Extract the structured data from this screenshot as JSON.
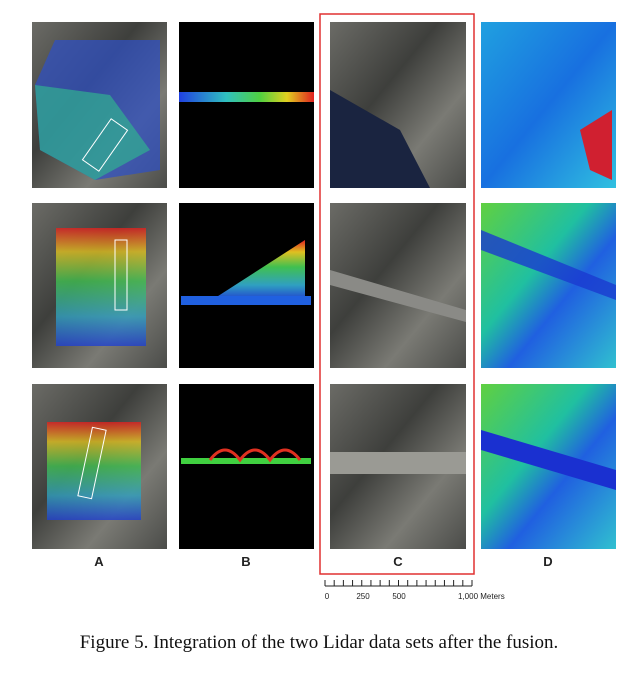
{
  "figure": {
    "column_labels": [
      "A",
      "B",
      "C",
      "D"
    ],
    "scale_bar": {
      "labels": [
        "0",
        "250",
        "500",
        "1,000 Meters"
      ]
    },
    "caption": "Figure 5. Integration of the two Lidar data sets after the fusion."
  }
}
